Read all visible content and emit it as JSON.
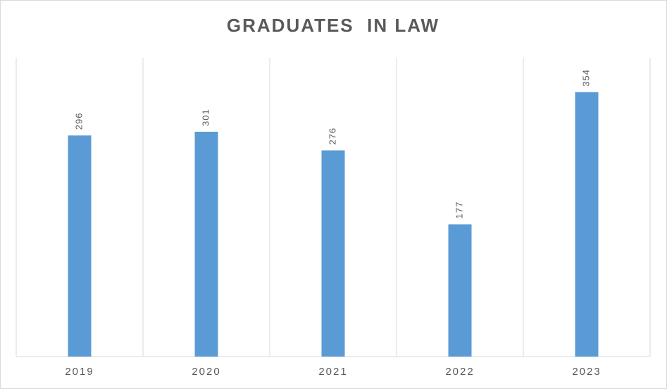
{
  "chart_data": {
    "type": "bar",
    "title": "GRADUATES  IN LAW",
    "categories": [
      "2019",
      "2020",
      "2021",
      "2022",
      "2023"
    ],
    "values": [
      296,
      301,
      276,
      177,
      354
    ],
    "color": "#5b9bd5",
    "ylim": [
      0,
      400
    ],
    "data_labels": true
  }
}
